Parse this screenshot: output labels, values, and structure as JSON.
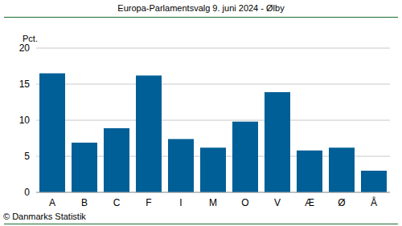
{
  "chart_data": {
    "type": "bar",
    "title": "Europa-Parlamentsvalg 9. juni 2024 - Ølby",
    "y_label": "Pct.",
    "source": "© Danmarks Statistik",
    "categories": [
      "A",
      "B",
      "C",
      "F",
      "I",
      "M",
      "O",
      "V",
      "Æ",
      "Ø",
      "Å"
    ],
    "values": [
      16.5,
      6.9,
      8.9,
      16.2,
      7.4,
      6.2,
      9.8,
      13.9,
      5.8,
      6.2,
      3.0
    ],
    "color": "#005f96",
    "ylim": [
      0,
      20
    ],
    "yticks": [
      0,
      5,
      10,
      15,
      20
    ],
    "grid": true
  }
}
